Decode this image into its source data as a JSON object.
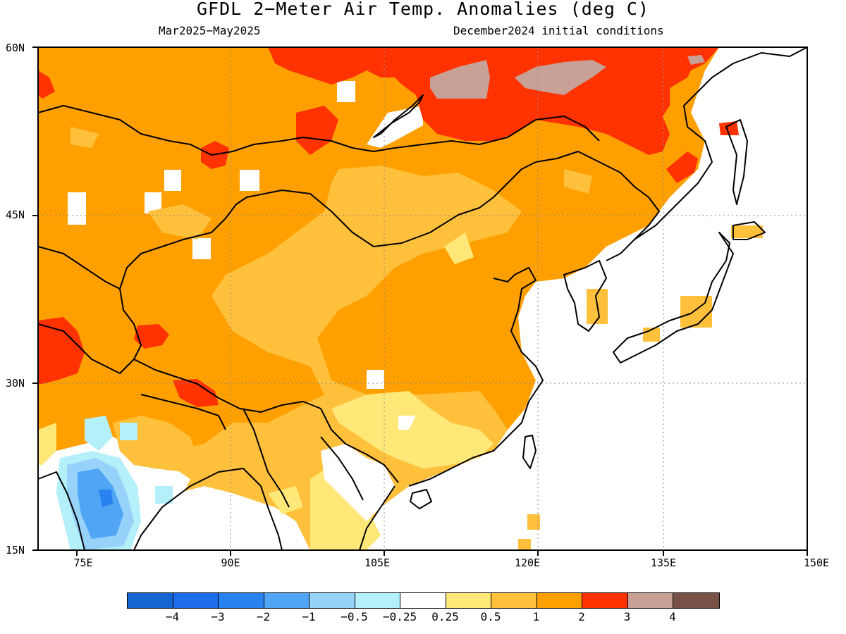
{
  "title": "GFDL 2−Meter Air Temp. Anomalies (deg C)",
  "subtitle_left": "Mar2025−May2025",
  "subtitle_right": "December2024 initial conditions",
  "lat_labels": [
    "60N",
    "45N",
    "30N",
    "15N"
  ],
  "lon_labels": [
    "75E",
    "90E",
    "105E",
    "120E",
    "135E",
    "150E"
  ],
  "legend": {
    "colors": [
      "#1464d2",
      "#1e6eeb",
      "#2882f0",
      "#50a5f5",
      "#96d2fa",
      "#b4f0fa",
      "#ffffff",
      "#ffe878",
      "#ffc03c",
      "#ffa000",
      "#ff3200",
      "#c8a096",
      "#785046"
    ],
    "labels": [
      "−4",
      "−3",
      "−2",
      "−1",
      "−0.5",
      "−0.25",
      "0.25",
      "0.5",
      "1",
      "2",
      "3",
      "4"
    ]
  }
}
